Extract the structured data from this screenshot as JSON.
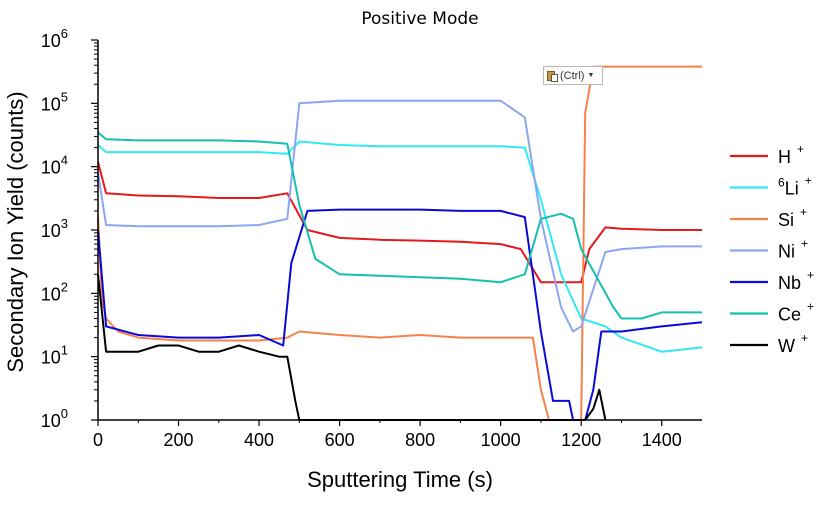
{
  "chart_data": {
    "type": "line",
    "title": "Positive Mode",
    "xlabel": "Sputtering Time (s)",
    "ylabel": "Secondary Ion Yield (counts)",
    "xlim": [
      0,
      1500
    ],
    "ylim": [
      1,
      1000000
    ],
    "yscale": "log",
    "grid": false,
    "legend_position": "right",
    "x_ticks": [
      0,
      200,
      400,
      600,
      800,
      1000,
      1200,
      1400
    ],
    "y_ticks": [
      {
        "base": "10",
        "exp": "0"
      },
      {
        "base": "10",
        "exp": "1"
      },
      {
        "base": "10",
        "exp": "2"
      },
      {
        "base": "10",
        "exp": "3"
      },
      {
        "base": "10",
        "exp": "4"
      },
      {
        "base": "10",
        "exp": "5"
      },
      {
        "base": "10",
        "exp": "6"
      }
    ],
    "series": [
      {
        "name": "H",
        "sup_pre": "",
        "sup_post": "+",
        "color": "#e31a1c",
        "x": [
          0,
          20,
          100,
          200,
          300,
          400,
          470,
          520,
          600,
          700,
          800,
          900,
          1000,
          1050,
          1100,
          1150,
          1200,
          1220,
          1260,
          1300,
          1400,
          1500
        ],
        "y": [
          12000,
          3800,
          3500,
          3400,
          3200,
          3200,
          3800,
          1000,
          750,
          700,
          680,
          650,
          600,
          500,
          150,
          150,
          150,
          500,
          1100,
          1050,
          1000,
          1000
        ]
      },
      {
        "name": "Li",
        "sup_pre": "6",
        "sup_post": "+",
        "color": "#33e8f2",
        "x": [
          0,
          20,
          100,
          200,
          300,
          400,
          470,
          500,
          600,
          700,
          800,
          900,
          1000,
          1060,
          1100,
          1150,
          1200,
          1260,
          1300,
          1400,
          1500
        ],
        "y": [
          22000,
          17000,
          17000,
          17000,
          17000,
          17000,
          16000,
          25000,
          22000,
          21000,
          21000,
          21000,
          21000,
          20000,
          3000,
          200,
          40,
          30,
          20,
          12,
          14
        ]
      },
      {
        "name": "Si",
        "sup_pre": "",
        "sup_post": "+",
        "color": "#f5824a",
        "x": [
          0,
          10,
          20,
          50,
          100,
          200,
          300,
          400,
          470,
          500,
          600,
          700,
          800,
          900,
          1000,
          1080,
          1100,
          1120,
          1130,
          1200,
          1210,
          1230,
          1300,
          1400,
          1500
        ],
        "y": [
          1600,
          80,
          40,
          25,
          20,
          18,
          18,
          18,
          20,
          25,
          22,
          20,
          22,
          20,
          20,
          20,
          3,
          1,
          1,
          1,
          70000,
          380000,
          380000,
          380000,
          380000
        ]
      },
      {
        "name": "Ni",
        "sup_pre": "",
        "sup_post": "+",
        "color": "#8ca6f0",
        "x": [
          0,
          20,
          100,
          200,
          300,
          400,
          470,
          500,
          600,
          700,
          800,
          900,
          1000,
          1060,
          1100,
          1150,
          1180,
          1200,
          1260,
          1300,
          1400,
          1500
        ],
        "y": [
          8000,
          1200,
          1150,
          1150,
          1150,
          1200,
          1500,
          100000,
          110000,
          110000,
          110000,
          110000,
          110000,
          60000,
          1500,
          60,
          25,
          30,
          450,
          500,
          550,
          550
        ]
      },
      {
        "name": "Nb",
        "sup_pre": "",
        "sup_post": "+",
        "color": "#0a0ad8",
        "x": [
          0,
          20,
          100,
          200,
          300,
          400,
          460,
          480,
          520,
          600,
          700,
          800,
          900,
          1000,
          1060,
          1100,
          1130,
          1170,
          1180,
          1210,
          1230,
          1250,
          1300,
          1400,
          1500
        ],
        "y": [
          1000,
          30,
          22,
          20,
          20,
          22,
          15,
          300,
          2000,
          2100,
          2100,
          2100,
          2000,
          2000,
          1600,
          25,
          2,
          2,
          1,
          1,
          3,
          25,
          25,
          30,
          35
        ]
      },
      {
        "name": "Ce",
        "sup_pre": "",
        "sup_post": "+",
        "color": "#16bfb0",
        "x": [
          0,
          20,
          100,
          200,
          300,
          400,
          470,
          500,
          540,
          600,
          700,
          800,
          900,
          1000,
          1060,
          1100,
          1150,
          1180,
          1200,
          1280,
          1300,
          1350,
          1400,
          1500
        ],
        "y": [
          35000,
          27000,
          26000,
          26000,
          26000,
          25000,
          23000,
          2500,
          350,
          200,
          190,
          180,
          170,
          150,
          200,
          1500,
          1800,
          1500,
          500,
          60,
          40,
          40,
          50,
          50
        ]
      },
      {
        "name": "W",
        "sup_pre": "",
        "sup_post": "+",
        "color": "#000000",
        "x": [
          0,
          20,
          50,
          100,
          150,
          200,
          250,
          300,
          350,
          400,
          450,
          470,
          490,
          500,
          1210,
          1230,
          1245,
          1260
        ],
        "y": [
          200,
          12,
          12,
          12,
          15,
          15,
          12,
          12,
          15,
          12,
          10,
          10,
          2,
          1,
          1,
          1.5,
          3,
          1
        ]
      }
    ]
  },
  "tooltip": {
    "label": "(Ctrl)"
  }
}
